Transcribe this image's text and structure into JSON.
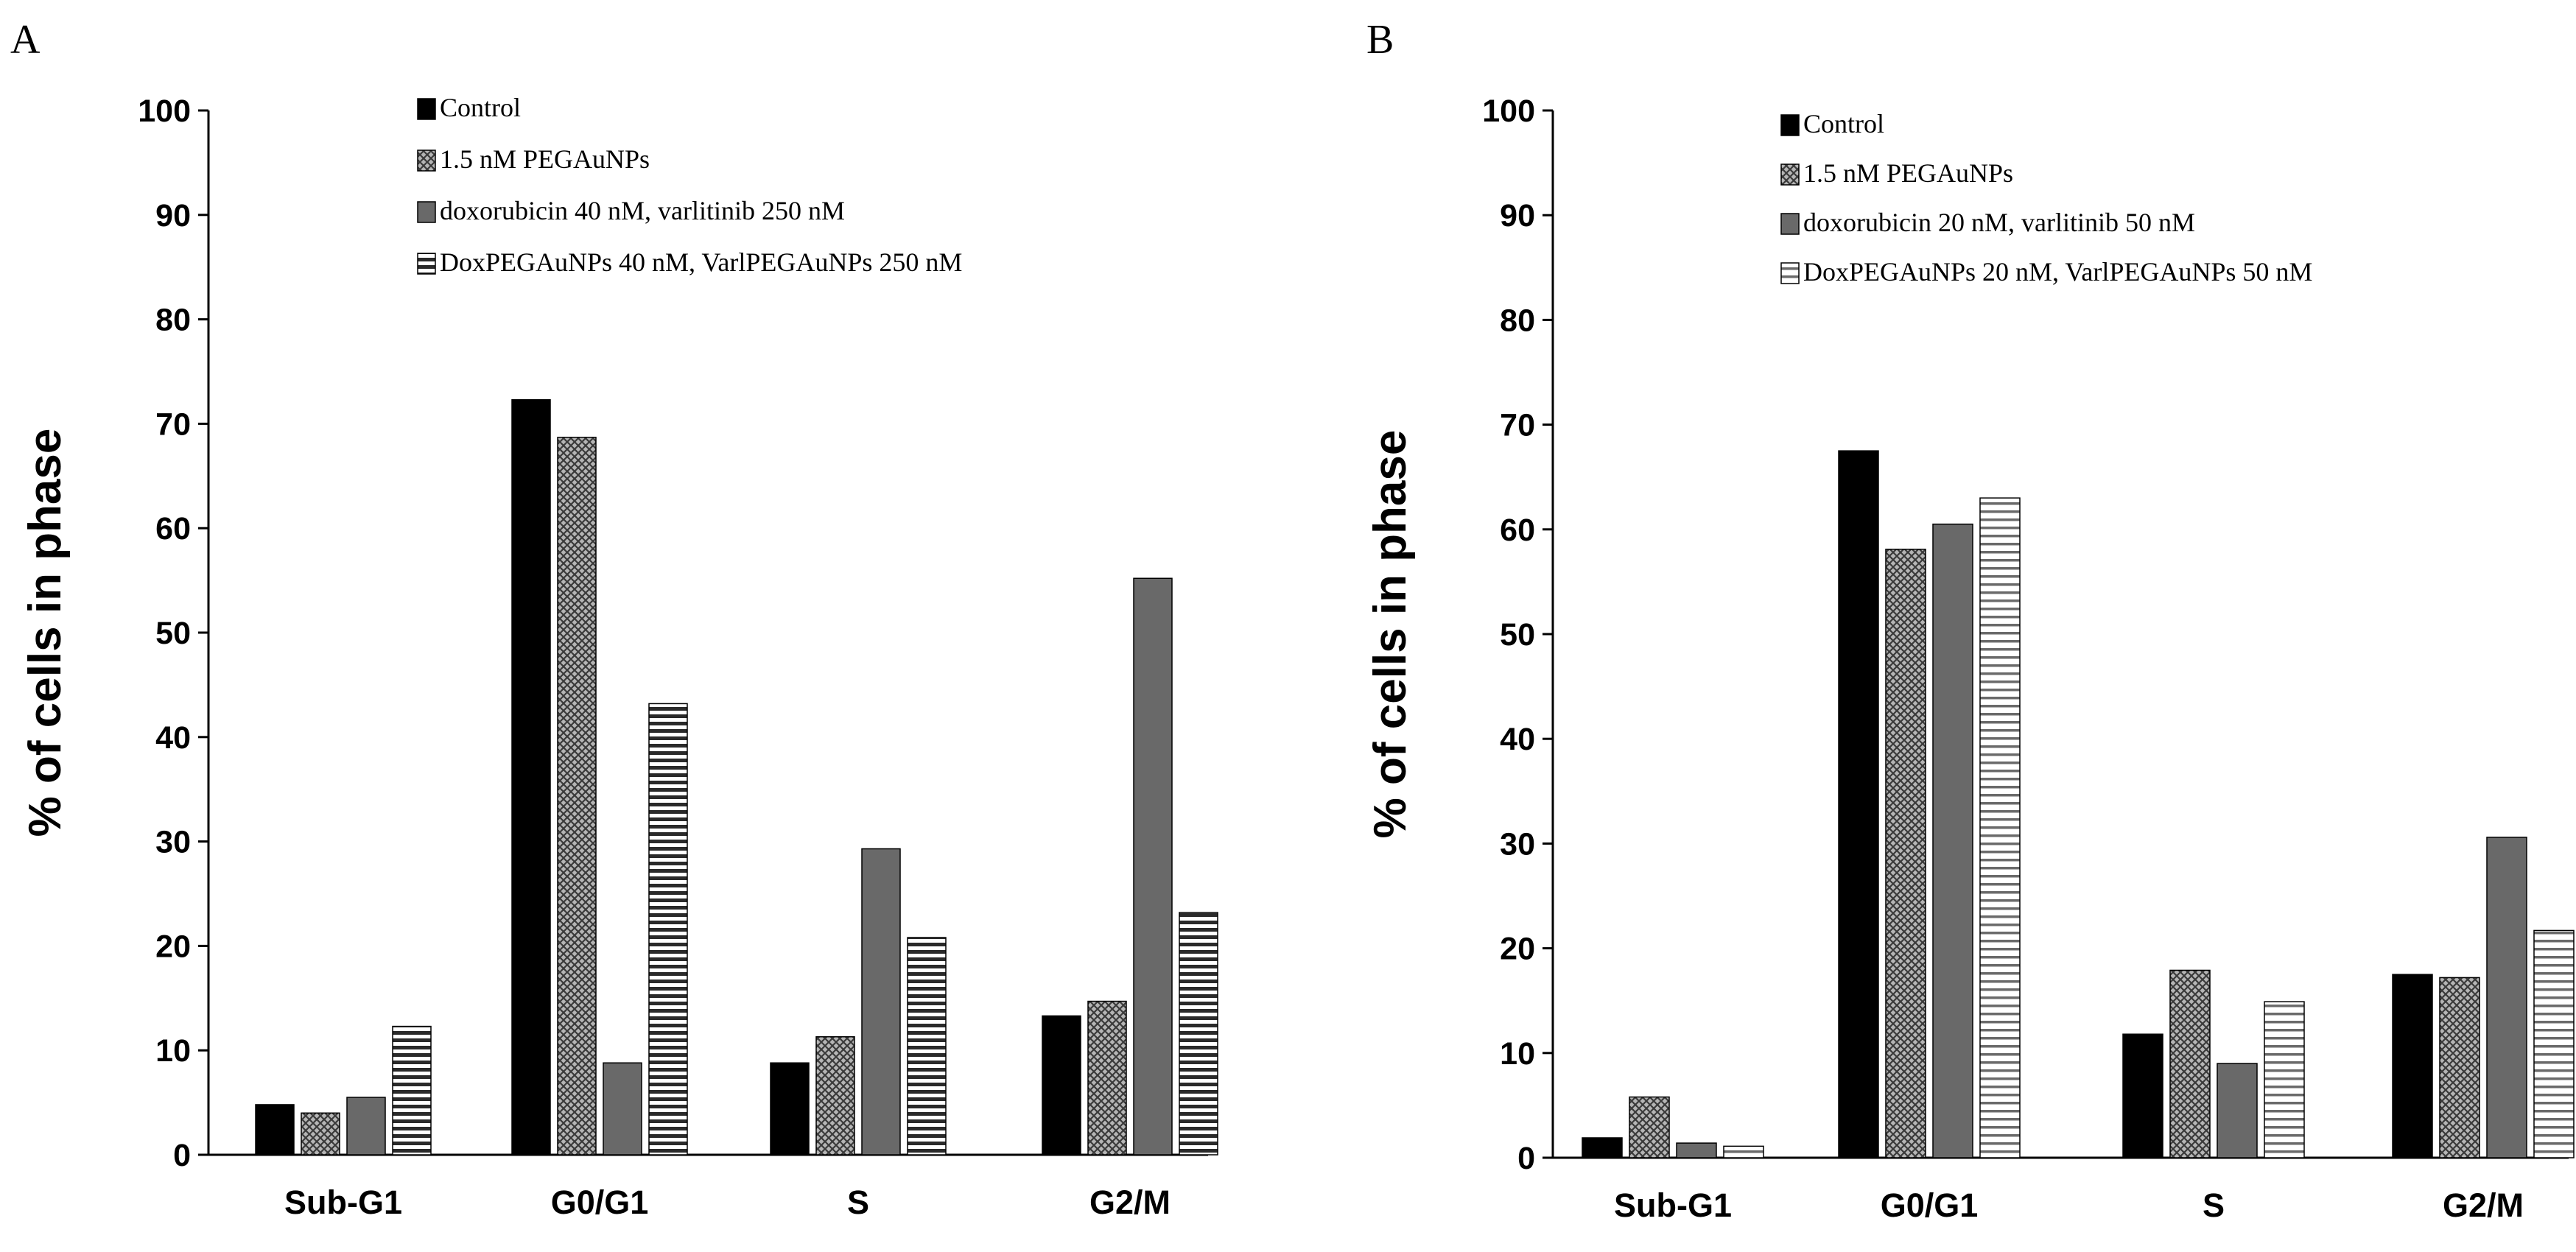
{
  "figure": {
    "panels": [
      "A",
      "B"
    ]
  },
  "chart_data": [
    {
      "type": "bar",
      "panel": "A",
      "title": "",
      "xlabel": "",
      "ylabel": "% of cells in phase",
      "ylim": [
        0,
        100
      ],
      "yticks": [
        0,
        10,
        20,
        30,
        40,
        50,
        60,
        70,
        80,
        90,
        100
      ],
      "categories": [
        "Sub-G1",
        "G0/G1",
        "S",
        "G2/M"
      ],
      "grid": false,
      "legend_position": "top-center",
      "series": [
        {
          "name": "Control",
          "values": [
            4.8,
            72.3,
            8.8,
            13.3
          ],
          "fill": "solid-black"
        },
        {
          "name": "1.5 nM PEGAuNPs",
          "values": [
            4.0,
            68.7,
            11.3,
            14.7
          ],
          "fill": "crosshatch-gray"
        },
        {
          "name": "doxorubicin 40 nM, varlitinib 250 nM",
          "values": [
            5.5,
            8.8,
            29.3,
            55.2
          ],
          "fill": "solid-gray"
        },
        {
          "name": "DoxPEGAuNPs 40 nM, VarlPEGAuNPs 250 nM",
          "values": [
            12.3,
            43.2,
            20.8,
            23.2
          ],
          "fill": "horizontal-stripes-dark"
        }
      ]
    },
    {
      "type": "bar",
      "panel": "B",
      "title": "",
      "xlabel": "",
      "ylabel": "% of cells in phase",
      "ylim": [
        0,
        100
      ],
      "yticks": [
        0,
        10,
        20,
        30,
        40,
        50,
        60,
        70,
        80,
        90,
        100
      ],
      "categories": [
        "Sub-G1",
        "G0/G1",
        "S",
        "G2/M"
      ],
      "grid": false,
      "legend_position": "top-center",
      "series": [
        {
          "name": "Control",
          "values": [
            1.9,
            67.5,
            11.8,
            17.5
          ],
          "fill": "solid-black"
        },
        {
          "name": "1.5 nM PEGAuNPs",
          "values": [
            5.8,
            58.1,
            17.9,
            17.2
          ],
          "fill": "crosshatch-gray"
        },
        {
          "name": "doxorubicin 20 nM, varlitinib 50 nM",
          "values": [
            1.4,
            60.5,
            9.0,
            30.6
          ],
          "fill": "solid-gray"
        },
        {
          "name": "DoxPEGAuNPs 20 nM, VarlPEGAuNPs 50 nM",
          "values": [
            1.1,
            63.0,
            14.9,
            21.7
          ],
          "fill": "horizontal-stripes-light"
        }
      ]
    }
  ]
}
